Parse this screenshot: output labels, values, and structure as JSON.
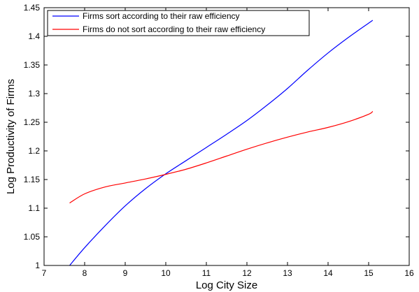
{
  "chart_data": {
    "type": "line",
    "xlabel": "Log City Size",
    "ylabel": "Log Productivity of Firms",
    "xlim": [
      7,
      16
    ],
    "ylim": [
      1,
      1.45
    ],
    "xticks": [
      "7",
      "8",
      "9",
      "10",
      "11",
      "12",
      "13",
      "14",
      "15",
      "16"
    ],
    "yticks": [
      "1",
      "1.05",
      "1.1",
      "1.15",
      "1.2",
      "1.25",
      "1.3",
      "1.35",
      "1.4",
      "1.45"
    ],
    "grid": false,
    "legend_position": "top-left",
    "series": [
      {
        "name": "Firms sort according to their raw efficiency",
        "color": "#0000ff",
        "x": [
          7.63,
          8.0,
          8.5,
          9.0,
          9.5,
          10.0,
          10.5,
          11.0,
          11.5,
          12.0,
          12.5,
          13.0,
          13.5,
          14.0,
          14.5,
          15.0,
          15.1
        ],
        "y": [
          1.0,
          1.031,
          1.069,
          1.104,
          1.134,
          1.16,
          1.183,
          1.206,
          1.229,
          1.253,
          1.28,
          1.309,
          1.341,
          1.371,
          1.398,
          1.423,
          1.428
        ]
      },
      {
        "name": "Firms do not sort according to their raw efficiency",
        "color": "#ff0000",
        "x": [
          7.63,
          8.0,
          8.5,
          9.0,
          9.5,
          10.0,
          10.5,
          11.0,
          11.5,
          12.0,
          12.5,
          13.0,
          13.5,
          14.0,
          14.5,
          15.0,
          15.1
        ],
        "y": [
          1.109,
          1.125,
          1.137,
          1.144,
          1.151,
          1.159,
          1.168,
          1.179,
          1.191,
          1.203,
          1.214,
          1.224,
          1.233,
          1.241,
          1.251,
          1.264,
          1.269
        ]
      }
    ]
  }
}
